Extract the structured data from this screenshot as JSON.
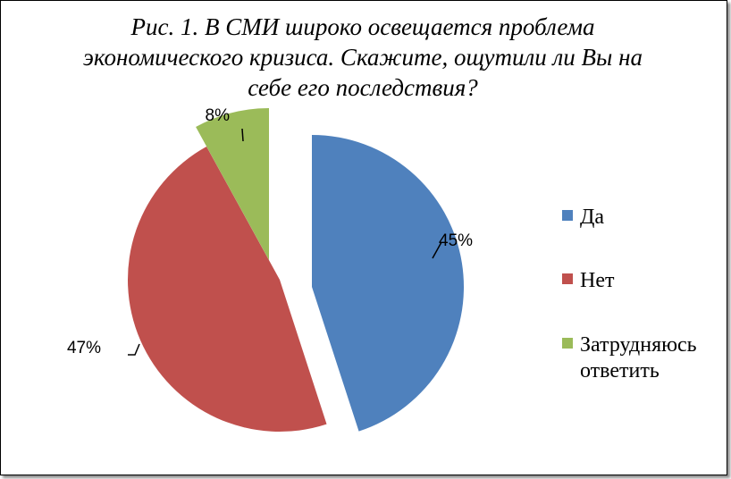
{
  "chart_data": {
    "type": "pie",
    "title_lines": [
      "Рис. 1. В СМИ широко освещается проблема",
      "экономического кризиса. Скажите, ощутили ли Вы на",
      "себе его последствия?"
    ],
    "categories": [
      "Да",
      "Нет",
      "Затрудняюсь ответить"
    ],
    "values": [
      45,
      47,
      8
    ],
    "data_labels": [
      "45%",
      "47%",
      "8%"
    ],
    "colors": [
      "#4f81bd",
      "#c0504d",
      "#9bbb59"
    ],
    "legend": {
      "position": "right",
      "entries": [
        [
          "Да"
        ],
        [
          "Нет"
        ],
        [
          "Затрудняюсь",
          "ответить"
        ]
      ]
    },
    "exploded": true
  }
}
